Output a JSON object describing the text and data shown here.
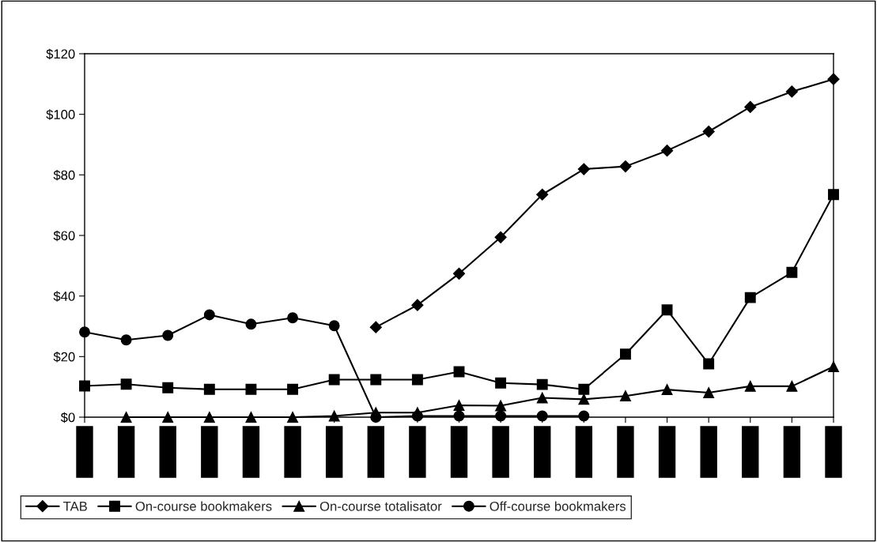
{
  "chart_data": {
    "type": "line",
    "categories": [
      null,
      null,
      null,
      null,
      null,
      null,
      null,
      null,
      null,
      null,
      null,
      null,
      null,
      null,
      null,
      null,
      null,
      null,
      null
    ],
    "series": [
      {
        "name": "TAB",
        "color": "#000000",
        "marker": "diamond",
        "values": [
          null,
          null,
          null,
          null,
          null,
          null,
          null,
          29.7,
          37,
          47.4,
          59.4,
          73.5,
          81.9,
          82.8,
          88,
          94.3,
          102.4,
          107.5,
          111.6
        ]
      },
      {
        "name": "On-course bookmakers",
        "color": "#000000",
        "marker": "square",
        "values": [
          10.3,
          10.9,
          9.7,
          9.2,
          9.2,
          9.2,
          12.4,
          12.4,
          12.4,
          15.0,
          11.3,
          10.8,
          9.2,
          20.8,
          35.4,
          17.6,
          39.5,
          47.8,
          73.5
        ]
      },
      {
        "name": "On-course totalisator",
        "color": "#000000",
        "marker": "triangle",
        "values": [
          null,
          0,
          0,
          0,
          0,
          0,
          0.4,
          1.5,
          1.5,
          3.9,
          3.8,
          6.4,
          5.9,
          7.0,
          9.1,
          8.1,
          10.2,
          10.2,
          16.7
        ]
      },
      {
        "name": "Off-course bookmakers",
        "color": "#000000",
        "marker": "circle",
        "values": [
          28.1,
          25.5,
          27.0,
          33.8,
          30.7,
          32.8,
          30.2,
          0,
          0.4,
          0.4,
          0.4,
          0.4,
          0.4,
          null,
          null,
          null,
          null,
          null,
          null
        ]
      }
    ],
    "ylim": [
      0,
      120
    ],
    "yticks": [
      {
        "value": 0,
        "label": "$0"
      },
      {
        "value": 20,
        "label": "$20"
      },
      {
        "value": 40,
        "label": "$40"
      },
      {
        "value": 60,
        "label": "$60"
      },
      {
        "value": 80,
        "label": "$80"
      },
      {
        "value": 100,
        "label": "$100"
      },
      {
        "value": 120,
        "label": "$120"
      }
    ],
    "grid": false,
    "legend": "bottom",
    "line_style": "solid"
  }
}
